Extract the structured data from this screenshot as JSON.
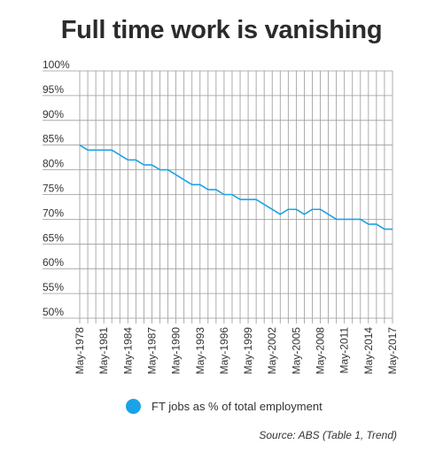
{
  "chart_data": {
    "type": "line",
    "title": "Full time work is vanishing",
    "xlabel": "",
    "ylabel": "",
    "y_tick_labels": [
      "50%",
      "55%",
      "60%",
      "65%",
      "70%",
      "75%",
      "80%",
      "85%",
      "90%",
      "95%",
      "100%"
    ],
    "ylim": [
      50,
      100
    ],
    "y_ticks": [
      50,
      55,
      60,
      65,
      70,
      75,
      80,
      85,
      90,
      95,
      100
    ],
    "x_ticks": [
      "May-1978",
      "May-1981",
      "May-1984",
      "May-1987",
      "May-1990",
      "May-1993",
      "May-1996",
      "May-1999",
      "May-2002",
      "May-2005",
      "May-2008",
      "May-2011",
      "May-2014",
      "May-2017"
    ],
    "x": [
      1978,
      1979,
      1980,
      1981,
      1982,
      1983,
      1984,
      1985,
      1986,
      1987,
      1988,
      1989,
      1990,
      1991,
      1992,
      1993,
      1994,
      1995,
      1996,
      1997,
      1998,
      1999,
      2000,
      2001,
      2002,
      2003,
      2004,
      2005,
      2006,
      2007,
      2008,
      2009,
      2010,
      2011,
      2012,
      2013,
      2014,
      2015,
      2016,
      2017
    ],
    "series": [
      {
        "name": "FT jobs as % of total employment",
        "color": "#1aa3e8",
        "values": [
          85,
          84,
          84,
          84,
          84,
          83,
          82,
          82,
          81,
          81,
          80,
          80,
          79,
          78,
          77,
          77,
          76,
          76,
          75,
          75,
          74,
          74,
          74,
          73,
          72,
          71,
          72,
          72,
          71,
          72,
          72,
          71,
          70,
          70,
          70,
          70,
          69,
          69,
          68,
          68
        ]
      }
    ],
    "grid": true,
    "legend_position": "bottom"
  },
  "source_text": "Source: ABS (Table 1, Trend)",
  "colors": {
    "line": "#1aa3e8",
    "grid": "#9a9a9a",
    "text": "#333333"
  }
}
